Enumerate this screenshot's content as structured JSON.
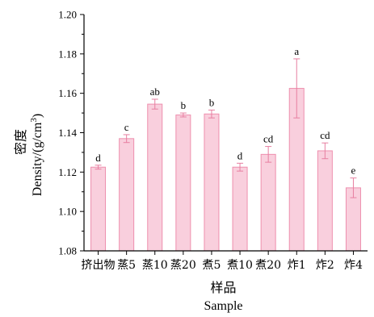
{
  "chart_data": {
    "type": "bar",
    "categories": [
      "挤出物",
      "蒸5",
      "蒸10",
      "蒸20",
      "煮5",
      "煮10",
      "煮20",
      "炸1",
      "炸2",
      "炸4"
    ],
    "values": [
      1.1225,
      1.137,
      1.1545,
      1.149,
      1.1495,
      1.1225,
      1.129,
      1.1625,
      1.1308,
      1.112
    ],
    "errors": [
      0.001,
      0.002,
      0.0025,
      0.001,
      0.002,
      0.002,
      0.004,
      0.015,
      0.004,
      0.005
    ],
    "significance": [
      "d",
      "c",
      "ab",
      "b",
      "b",
      "d",
      "cd",
      "a",
      "cd",
      "e"
    ],
    "ylim": [
      1.08,
      1.2
    ],
    "yticks": [
      "1.08",
      "1.10",
      "1.12",
      "1.14",
      "1.16",
      "1.18",
      "1.20"
    ],
    "ylabel_cn": "密度",
    "ylabel_en_main": "Density/(g/cm",
    "ylabel_en_sup": "3",
    "ylabel_en_tail": ")",
    "xlabel_cn": "样品",
    "xlabel_en": "Sample",
    "bar_fill": "#f9cfdd",
    "bar_edge": "#ee8fae",
    "error_color": "#e77fa1",
    "grid": false
  }
}
